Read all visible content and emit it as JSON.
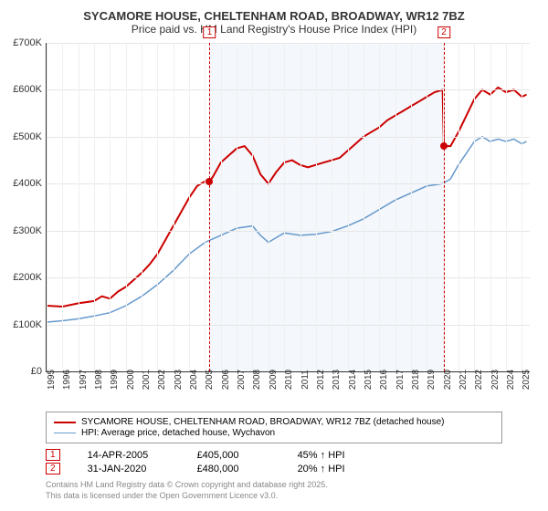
{
  "title": "SYCAMORE HOUSE, CHELTENHAM ROAD, BROADWAY, WR12 7BZ",
  "subtitle": "Price paid vs. HM Land Registry's House Price Index (HPI)",
  "chart": {
    "type": "line",
    "background_color": "#ffffff",
    "grid_color": "#e5e5e5",
    "axis_color": "#333333",
    "ylim": [
      0,
      700000
    ],
    "ytick_step": 100000,
    "y_labels": [
      "£0",
      "£100K",
      "£200K",
      "£300K",
      "£400K",
      "£500K",
      "£600K",
      "£700K"
    ],
    "xlim": [
      1995,
      2025.5
    ],
    "x_labels": [
      "1995",
      "1996",
      "1997",
      "1998",
      "1999",
      "2000",
      "2001",
      "2002",
      "2003",
      "2004",
      "2005",
      "2006",
      "2007",
      "2008",
      "2009",
      "2010",
      "2011",
      "2012",
      "2013",
      "2014",
      "2015",
      "2016",
      "2017",
      "2018",
      "2019",
      "2020",
      "2021",
      "2022",
      "2023",
      "2024",
      "2025"
    ],
    "shade": {
      "start": 2005.29,
      "end": 2020.08,
      "color": "rgba(180,200,230,0.15)"
    },
    "series": [
      {
        "name": "SYCAMORE HOUSE, CHELTENHAM ROAD, BROADWAY, WR12 7BZ (detached house)",
        "color": "#cc0000",
        "line_width": 2,
        "points": [
          [
            1995,
            140000
          ],
          [
            1996,
            138000
          ],
          [
            1997,
            145000
          ],
          [
            1998,
            150000
          ],
          [
            1998.5,
            160000
          ],
          [
            1999,
            155000
          ],
          [
            1999.5,
            170000
          ],
          [
            2000,
            180000
          ],
          [
            2000.5,
            195000
          ],
          [
            2001,
            210000
          ],
          [
            2001.5,
            228000
          ],
          [
            2002,
            250000
          ],
          [
            2002.5,
            280000
          ],
          [
            2003,
            310000
          ],
          [
            2003.5,
            340000
          ],
          [
            2004,
            370000
          ],
          [
            2004.5,
            395000
          ],
          [
            2005,
            405000
          ],
          [
            2005.29,
            405000
          ],
          [
            2005.5,
            415000
          ],
          [
            2006,
            445000
          ],
          [
            2006.5,
            460000
          ],
          [
            2007,
            475000
          ],
          [
            2007.5,
            480000
          ],
          [
            2008,
            460000
          ],
          [
            2008.5,
            420000
          ],
          [
            2009,
            400000
          ],
          [
            2009.5,
            425000
          ],
          [
            2010,
            445000
          ],
          [
            2010.5,
            450000
          ],
          [
            2011,
            440000
          ],
          [
            2011.5,
            435000
          ],
          [
            2012,
            440000
          ],
          [
            2012.5,
            445000
          ],
          [
            2013,
            450000
          ],
          [
            2013.5,
            455000
          ],
          [
            2014,
            470000
          ],
          [
            2014.5,
            485000
          ],
          [
            2015,
            500000
          ],
          [
            2015.5,
            510000
          ],
          [
            2016,
            520000
          ],
          [
            2016.5,
            535000
          ],
          [
            2017,
            545000
          ],
          [
            2017.5,
            555000
          ],
          [
            2018,
            565000
          ],
          [
            2018.5,
            575000
          ],
          [
            2019,
            585000
          ],
          [
            2019.5,
            595000
          ],
          [
            2020,
            600000
          ],
          [
            2020.08,
            480000
          ],
          [
            2020.5,
            480000
          ],
          [
            2021,
            510000
          ],
          [
            2021.5,
            545000
          ],
          [
            2022,
            580000
          ],
          [
            2022.5,
            600000
          ],
          [
            2023,
            590000
          ],
          [
            2023.5,
            605000
          ],
          [
            2024,
            595000
          ],
          [
            2024.5,
            600000
          ],
          [
            2025,
            585000
          ],
          [
            2025.3,
            590000
          ]
        ]
      },
      {
        "name": "HPI: Average price, detached house, Wychavon",
        "color": "#6699cc",
        "line_width": 1.5,
        "points": [
          [
            1995,
            105000
          ],
          [
            1996,
            108000
          ],
          [
            1997,
            112000
          ],
          [
            1998,
            118000
          ],
          [
            1999,
            125000
          ],
          [
            2000,
            140000
          ],
          [
            2001,
            160000
          ],
          [
            2002,
            185000
          ],
          [
            2003,
            215000
          ],
          [
            2004,
            250000
          ],
          [
            2005,
            275000
          ],
          [
            2006,
            290000
          ],
          [
            2007,
            305000
          ],
          [
            2008,
            310000
          ],
          [
            2008.5,
            290000
          ],
          [
            2009,
            275000
          ],
          [
            2009.5,
            285000
          ],
          [
            2010,
            295000
          ],
          [
            2011,
            290000
          ],
          [
            2012,
            292000
          ],
          [
            2013,
            298000
          ],
          [
            2014,
            310000
          ],
          [
            2015,
            325000
          ],
          [
            2016,
            345000
          ],
          [
            2017,
            365000
          ],
          [
            2018,
            380000
          ],
          [
            2019,
            395000
          ],
          [
            2020,
            400000
          ],
          [
            2020.5,
            410000
          ],
          [
            2021,
            440000
          ],
          [
            2021.5,
            465000
          ],
          [
            2022,
            490000
          ],
          [
            2022.5,
            500000
          ],
          [
            2023,
            490000
          ],
          [
            2023.5,
            495000
          ],
          [
            2024,
            490000
          ],
          [
            2024.5,
            495000
          ],
          [
            2025,
            485000
          ],
          [
            2025.3,
            490000
          ]
        ]
      }
    ],
    "markers": [
      {
        "n": "1",
        "x": 2005.29,
        "y": 405000,
        "color": "#cc0000"
      },
      {
        "n": "2",
        "x": 2020.08,
        "y": 480000,
        "color": "#cc0000"
      }
    ]
  },
  "sales": [
    {
      "n": "1",
      "date": "14-APR-2005",
      "price": "£405,000",
      "delta": "45% ↑ HPI",
      "color": "#cc0000"
    },
    {
      "n": "2",
      "date": "31-JAN-2020",
      "price": "£480,000",
      "delta": "20% ↑ HPI",
      "color": "#cc0000"
    }
  ],
  "attribution": {
    "line1": "Contains HM Land Registry data © Crown copyright and database right 2025.",
    "line2": "This data is licensed under the Open Government Licence v3.0."
  }
}
